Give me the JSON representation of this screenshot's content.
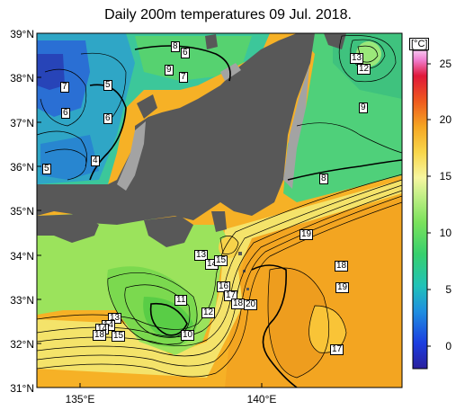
{
  "title": "Daily 200m temperatures 09 Jul. 2018.",
  "lat_labels": [
    "39°N",
    "38°N",
    "37°N",
    "36°N",
    "35°N",
    "34°N",
    "33°N",
    "32°N",
    "31°N"
  ],
  "lon_labels": [
    "135°E",
    "140°E"
  ],
  "colorbar": {
    "unit": "[°C]",
    "ticks": [
      "25",
      "20",
      "15",
      "10",
      "5",
      "0"
    ]
  },
  "contour_labels": [
    "8",
    "6",
    "9",
    "7",
    "7",
    "5",
    "6",
    "6",
    "4",
    "5",
    "13",
    "12",
    "9",
    "8",
    "19",
    "13",
    "14",
    "15",
    "18",
    "19",
    "16",
    "17",
    "18",
    "20",
    "11",
    "12",
    "13",
    "14",
    "14",
    "18",
    "15",
    "10",
    "17"
  ],
  "colors": {
    "land": "#555555",
    "coast_gray": "#a0a0a0",
    "cold": "#2b6fd6",
    "mid": "#3fd06b",
    "warm": "#f6b320"
  }
}
